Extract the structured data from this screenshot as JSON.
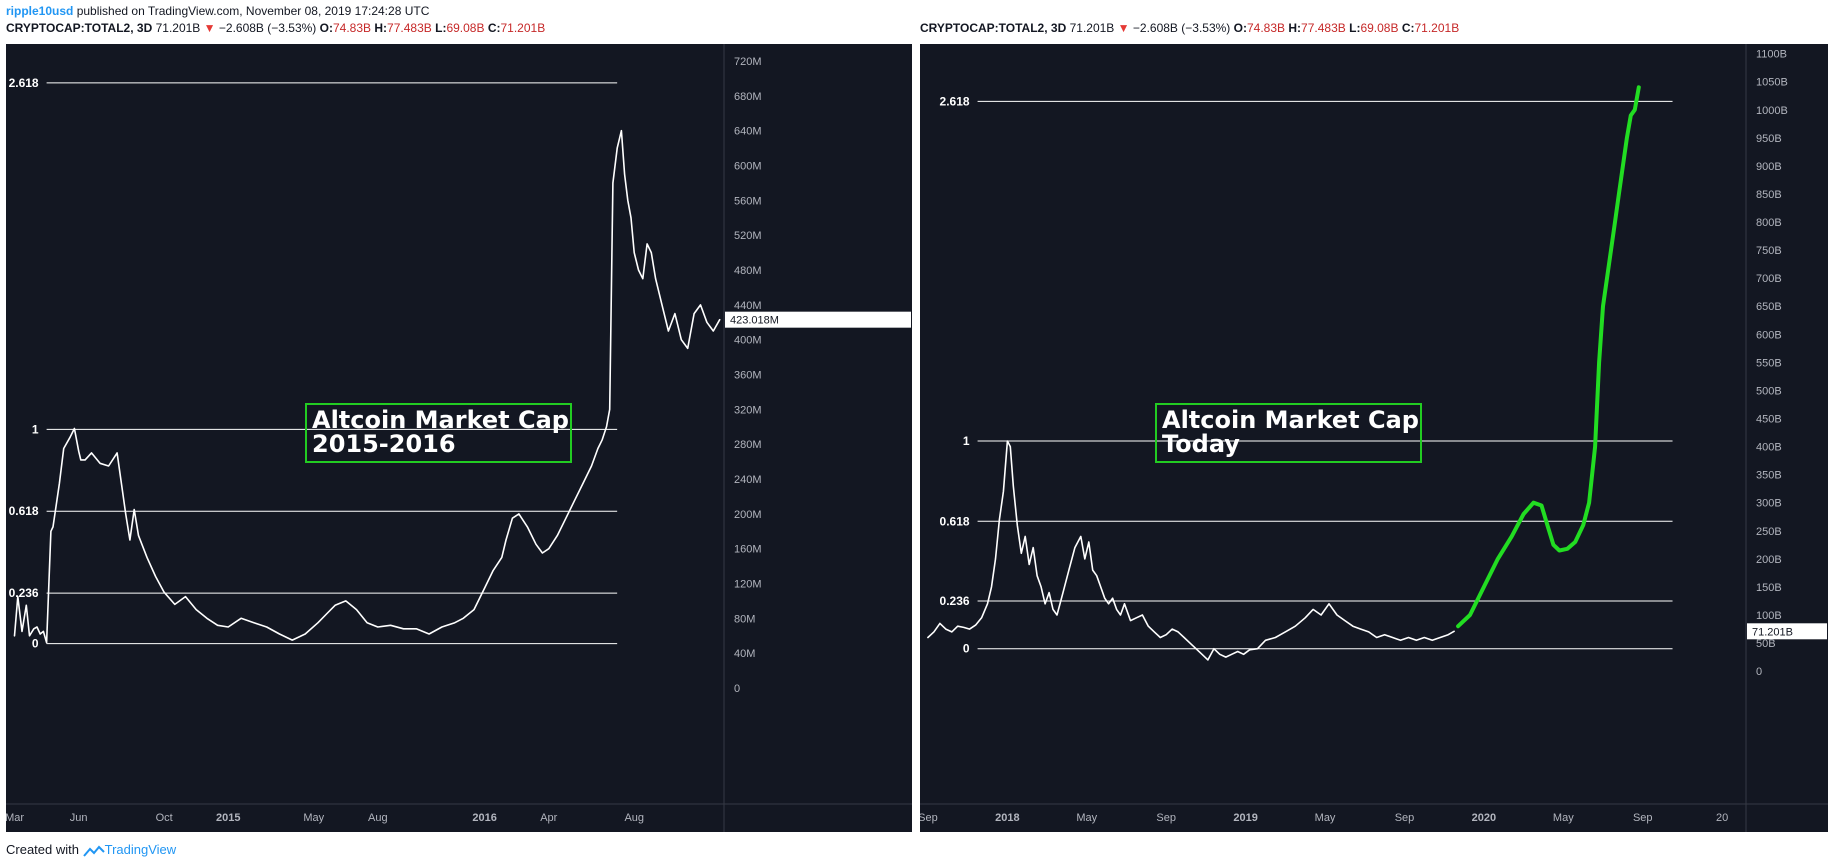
{
  "header": {
    "user": "ripple10usd",
    "published": "published on TradingView.com, November 08, 2019 17:24:28 UTC"
  },
  "footer": {
    "created": "Created with",
    "brand": "TradingView"
  },
  "colors": {
    "bg": "#131722",
    "line": "#ffffff",
    "green": "#22dd22",
    "down": "#e53935"
  },
  "chart_data": [
    {
      "type": "line",
      "symbol_line": {
        "symbol": "CRYPTOCAP:TOTAL2, 3D",
        "last": "71.201B",
        "change": "−2.608B (−3.53%)",
        "open_label": "O:",
        "open": "74.83B",
        "high_label": "H:",
        "high": "77.483B",
        "low_label": "L:",
        "low": "69.08B",
        "close_label": "C:",
        "close": "71.201B"
      },
      "annotation": [
        "Altcoin Market Cap",
        "2015-2016"
      ],
      "y_ticks": [
        "720M",
        "680M",
        "640M",
        "600M",
        "560M",
        "520M",
        "480M",
        "440M",
        "400M",
        "360M",
        "320M",
        "280M",
        "240M",
        "200M",
        "160M",
        "120M",
        "80M",
        "40M",
        "0"
      ],
      "y_tick_values": [
        720,
        680,
        640,
        600,
        560,
        520,
        480,
        440,
        400,
        360,
        320,
        280,
        240,
        200,
        160,
        120,
        80,
        40,
        0
      ],
      "ylim": [
        0,
        735
      ],
      "x_ticks": [
        "Mar",
        "Jun",
        "Oct",
        "2015",
        "May",
        "Aug",
        "2016",
        "Apr",
        "Aug"
      ],
      "x_tick_values": [
        0,
        3,
        7,
        10,
        14,
        17,
        22,
        25,
        29
      ],
      "xlim": [
        -0.4,
        33.2
      ],
      "price_label": "423.018M",
      "price_value": 423,
      "fib_levels": [
        {
          "label": "2.618",
          "value": 695
        },
        {
          "label": "1",
          "value": 297
        },
        {
          "label": "0.618",
          "value": 203
        },
        {
          "label": "0.236",
          "value": 109
        },
        {
          "label": "0",
          "value": 51
        }
      ],
      "fib_xrange": [
        1.5,
        28.2
      ],
      "series": [
        {
          "x": [
            0,
            0.15,
            0.35,
            0.55,
            0.7,
            0.9,
            1.05,
            1.2,
            1.35,
            1.5,
            1.7,
            1.8,
            2.1,
            2.3,
            2.6,
            2.8,
            3.0,
            3.1,
            3.3,
            3.6,
            4.0,
            4.4,
            4.8,
            5.0,
            5.2,
            5.4,
            5.6,
            5.8,
            6.2,
            6.6,
            7.0,
            7.5,
            8.0,
            8.5,
            9.0,
            9.5,
            10.0,
            10.6,
            11.2,
            11.8,
            12.4,
            13.0,
            13.6,
            14.2,
            14.6,
            15.0,
            15.5,
            16.0,
            16.5,
            17.0,
            17.6,
            18.2,
            18.8,
            19.4,
            20.0,
            20.6,
            21.0,
            21.5,
            22.0,
            22.4,
            22.8,
            23.0,
            23.3,
            23.6,
            24.0,
            24.4,
            24.7,
            25.0,
            25.4,
            25.8,
            26.2,
            26.6,
            27.0,
            27.3,
            27.5,
            27.7,
            27.85,
            28.0,
            28.2,
            28.4,
            28.55,
            28.7,
            28.85,
            29.0,
            29.2,
            29.4,
            29.6,
            29.8,
            30.0,
            30.3,
            30.6,
            30.9,
            31.2,
            31.5,
            31.8,
            32.1,
            32.4,
            32.7,
            33.0
          ],
          "y": [
            60,
            105,
            65,
            95,
            60,
            68,
            70,
            62,
            65,
            52,
            180,
            185,
            235,
            275,
            288,
            298,
            272,
            262,
            262,
            270,
            258,
            255,
            270,
            235,
            200,
            170,
            205,
            175,
            150,
            128,
            110,
            96,
            105,
            90,
            80,
            72,
            70,
            80,
            75,
            70,
            62,
            55,
            62,
            75,
            85,
            95,
            100,
            90,
            75,
            70,
            72,
            68,
            68,
            62,
            70,
            75,
            80,
            90,
            115,
            135,
            150,
            170,
            195,
            200,
            185,
            165,
            155,
            160,
            175,
            195,
            215,
            235,
            255,
            275,
            285,
            300,
            320,
            580,
            620,
            640,
            590,
            560,
            540,
            500,
            480,
            470,
            510,
            500,
            470,
            440,
            410,
            430,
            400,
            390,
            430,
            440,
            420,
            410,
            423
          ]
        }
      ]
    },
    {
      "type": "line",
      "symbol_line": {
        "symbol": "CRYPTOCAP:TOTAL2, 3D",
        "last": "71.201B",
        "change": "−2.608B (−3.53%)",
        "open_label": "O:",
        "open": "74.83B",
        "high_label": "H:",
        "high": "77.483B",
        "low_label": "L:",
        "low": "69.08B",
        "close_label": "C:",
        "close": "71.201B"
      },
      "annotation": [
        "Altcoin Market Cap",
        "Today"
      ],
      "y_ticks": [
        "1100B",
        "1050B",
        "1000B",
        "950B",
        "900B",
        "850B",
        "800B",
        "750B",
        "700B",
        "650B",
        "600B",
        "550B",
        "500B",
        "450B",
        "400B",
        "350B",
        "300B",
        "250B",
        "200B",
        "150B",
        "100B",
        "50B",
        "0"
      ],
      "y_tick_values": [
        1100,
        1050,
        1000,
        950,
        900,
        850,
        800,
        750,
        700,
        650,
        600,
        550,
        500,
        450,
        400,
        350,
        300,
        250,
        200,
        150,
        100,
        50,
        0
      ],
      "ylim": [
        -30,
        1110
      ],
      "x_ticks": [
        "Sep",
        "2018",
        "May",
        "Sep",
        "2019",
        "May",
        "Sep",
        "2020",
        "May",
        "Sep",
        "20"
      ],
      "x_tick_values": [
        0,
        4,
        8,
        12,
        16,
        20,
        24,
        28,
        32,
        36,
        40
      ],
      "xlim": [
        -0.4,
        41.2
      ],
      "price_label": "71.201B",
      "price_value": 71,
      "fib_levels": [
        {
          "label": "2.618",
          "value": 1015
        },
        {
          "label": "1",
          "value": 410
        },
        {
          "label": "0.618",
          "value": 267
        },
        {
          "label": "0.236",
          "value": 125
        },
        {
          "label": "0",
          "value": 40
        }
      ],
      "fib_xrange": [
        2.5,
        37.5
      ],
      "series": [
        {
          "name": "",
          "x": [
            0,
            0.3,
            0.6,
            0.9,
            1.2,
            1.5,
            1.8,
            2.1,
            2.4,
            2.7,
            3.0,
            3.2,
            3.4,
            3.6,
            3.8,
            4.0,
            4.15,
            4.3,
            4.5,
            4.7,
            4.9,
            5.1,
            5.3,
            5.5,
            5.7,
            5.9,
            6.1,
            6.3,
            6.5,
            6.8,
            7.1,
            7.4,
            7.7,
            7.9,
            8.1,
            8.3,
            8.5,
            8.7,
            8.9,
            9.1,
            9.3,
            9.5,
            9.7,
            9.9,
            10.2,
            10.5,
            10.8,
            11.1,
            11.4,
            11.7,
            12.0,
            12.3,
            12.6,
            12.9,
            13.2,
            13.5,
            13.8,
            14.1,
            14.4,
            14.7,
            15.0,
            15.3,
            15.6,
            15.9,
            16.2,
            16.6,
            17.0,
            17.5,
            18.0,
            18.5,
            19.0,
            19.4,
            19.8,
            20.2,
            20.6,
            21.0,
            21.4,
            21.8,
            22.2,
            22.6,
            23.0,
            23.4,
            23.8,
            24.2,
            24.6,
            25.0,
            25.4,
            25.8,
            26.2,
            26.5
          ],
          "y": [
            60,
            70,
            85,
            75,
            70,
            80,
            78,
            75,
            82,
            95,
            120,
            150,
            200,
            270,
            320,
            410,
            400,
            330,
            260,
            210,
            240,
            190,
            220,
            170,
            150,
            120,
            140,
            110,
            100,
            140,
            180,
            220,
            240,
            200,
            230,
            180,
            170,
            150,
            130,
            120,
            130,
            110,
            100,
            120,
            90,
            95,
            100,
            80,
            70,
            60,
            65,
            75,
            70,
            60,
            50,
            40,
            30,
            20,
            40,
            30,
            25,
            30,
            35,
            30,
            38,
            40,
            55,
            60,
            70,
            80,
            95,
            110,
            100,
            120,
            100,
            90,
            80,
            75,
            70,
            60,
            65,
            60,
            55,
            60,
            55,
            60,
            55,
            60,
            65,
            71
          ]
        },
        {
          "name": "",
          "projection": true,
          "x": [
            26.7,
            27.3,
            28.0,
            28.7,
            29.4,
            30.0,
            30.5,
            30.9,
            31.2,
            31.5,
            31.8,
            32.2,
            32.6,
            33.0,
            33.3,
            33.6,
            33.8,
            34.0,
            34.2,
            34.4,
            34.6,
            34.8,
            35.0,
            35.2,
            35.4,
            35.6,
            35.7,
            35.8
          ],
          "y": [
            80,
            100,
            150,
            200,
            240,
            280,
            300,
            295,
            260,
            225,
            215,
            218,
            230,
            260,
            300,
            400,
            550,
            650,
            700,
            750,
            800,
            850,
            900,
            950,
            990,
            1000,
            1020,
            1040
          ]
        }
      ]
    }
  ]
}
